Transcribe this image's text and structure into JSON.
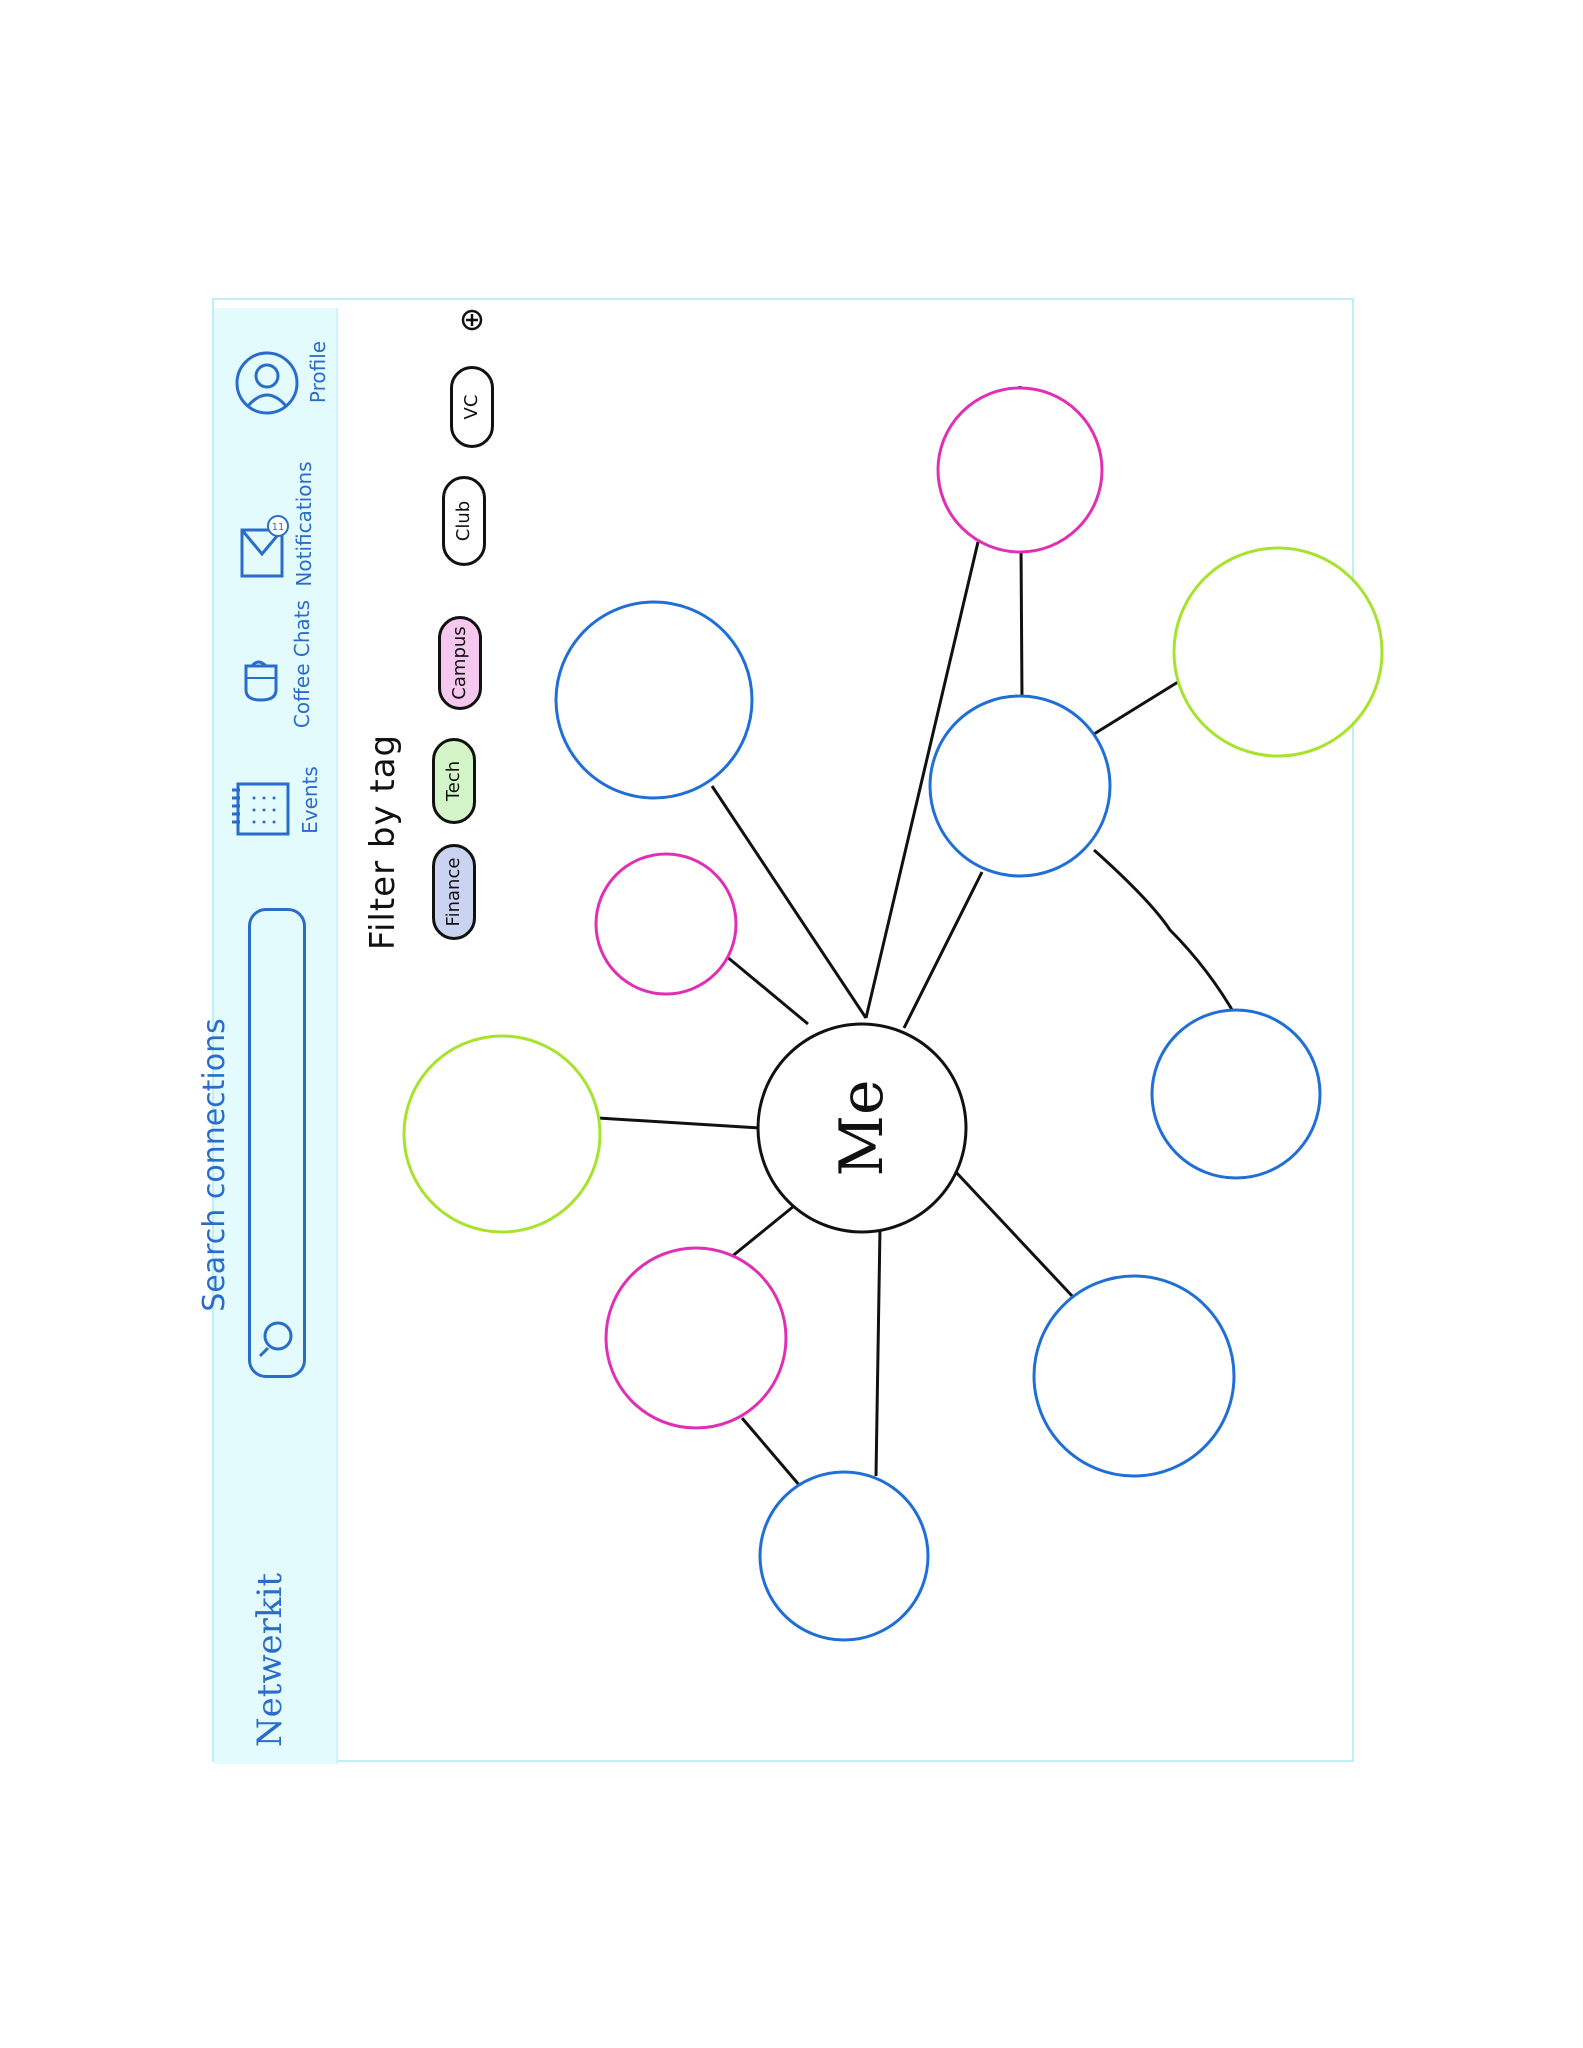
{
  "app": {
    "title": "Netwerkit"
  },
  "search": {
    "placeholder": "Search connections"
  },
  "nav": {
    "events": "Events",
    "coffee_chats": "Coffee Chats",
    "notifications": "Notifications",
    "notifications_badge": "11",
    "profile": "Profile"
  },
  "filter": {
    "title": "Filter by tag",
    "tags": [
      {
        "label": "Finance",
        "color": "#cbd3f2"
      },
      {
        "label": "Tech",
        "color": "#d3f5c8"
      },
      {
        "label": "Campus",
        "color": "#f6c7ef"
      },
      {
        "label": "Club",
        "color": "#ffffff"
      },
      {
        "label": "VC",
        "color": "#ffffff"
      }
    ],
    "add_icon": "plus-circle-icon"
  },
  "graph": {
    "center_label": "Me",
    "colors": {
      "finance": "#1f6fd6",
      "tech": "#a7e32d",
      "campus": "#e02fb5"
    }
  }
}
